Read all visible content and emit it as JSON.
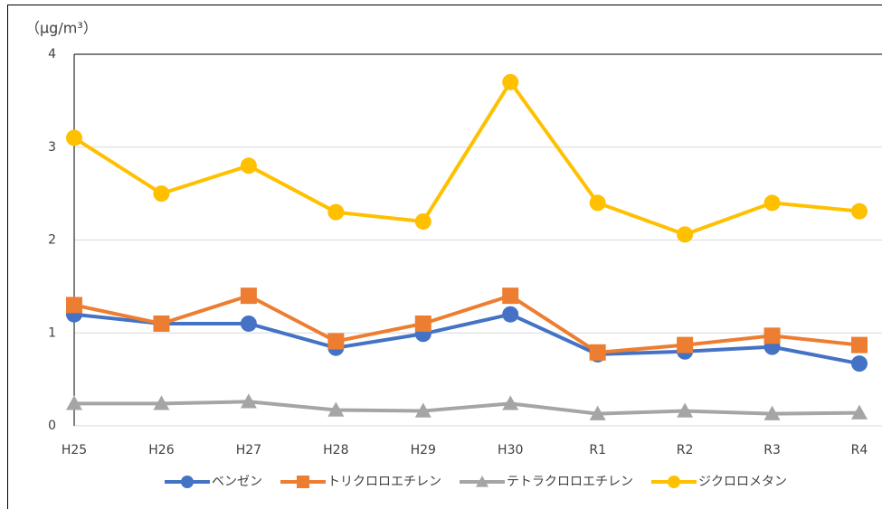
{
  "chart_data": {
    "type": "line",
    "y_label": "（μg/m³）",
    "categories": [
      "H25",
      "H26",
      "H27",
      "H28",
      "H29",
      "H30",
      "R1",
      "R2",
      "R3",
      "R4"
    ],
    "series": [
      {
        "name": "ベンゼン",
        "color": "#4472c4",
        "marker": "circle",
        "values": [
          1.2,
          1.1,
          1.1,
          0.84,
          0.99,
          1.2,
          0.77,
          0.8,
          0.85,
          0.67
        ]
      },
      {
        "name": "トリクロロエチレン",
        "color": "#ed7d31",
        "marker": "square",
        "values": [
          1.3,
          1.1,
          1.4,
          0.91,
          1.1,
          1.4,
          0.79,
          0.87,
          0.97,
          0.87
        ]
      },
      {
        "name": "テトラクロロエチレン",
        "color": "#a5a5a5",
        "marker": "triangle",
        "values": [
          0.24,
          0.24,
          0.26,
          0.17,
          0.16,
          0.24,
          0.13,
          0.16,
          0.13,
          0.14
        ]
      },
      {
        "name": "ジクロロメタン",
        "color": "#ffc000",
        "marker": "circle",
        "values": [
          3.1,
          2.5,
          2.8,
          2.3,
          2.2,
          3.7,
          2.4,
          2.06,
          2.4,
          2.31
        ]
      }
    ],
    "ylim": [
      0,
      4
    ],
    "yticks": [
      0,
      1,
      2,
      3,
      4
    ],
    "grid": true,
    "legend": "bottom"
  }
}
